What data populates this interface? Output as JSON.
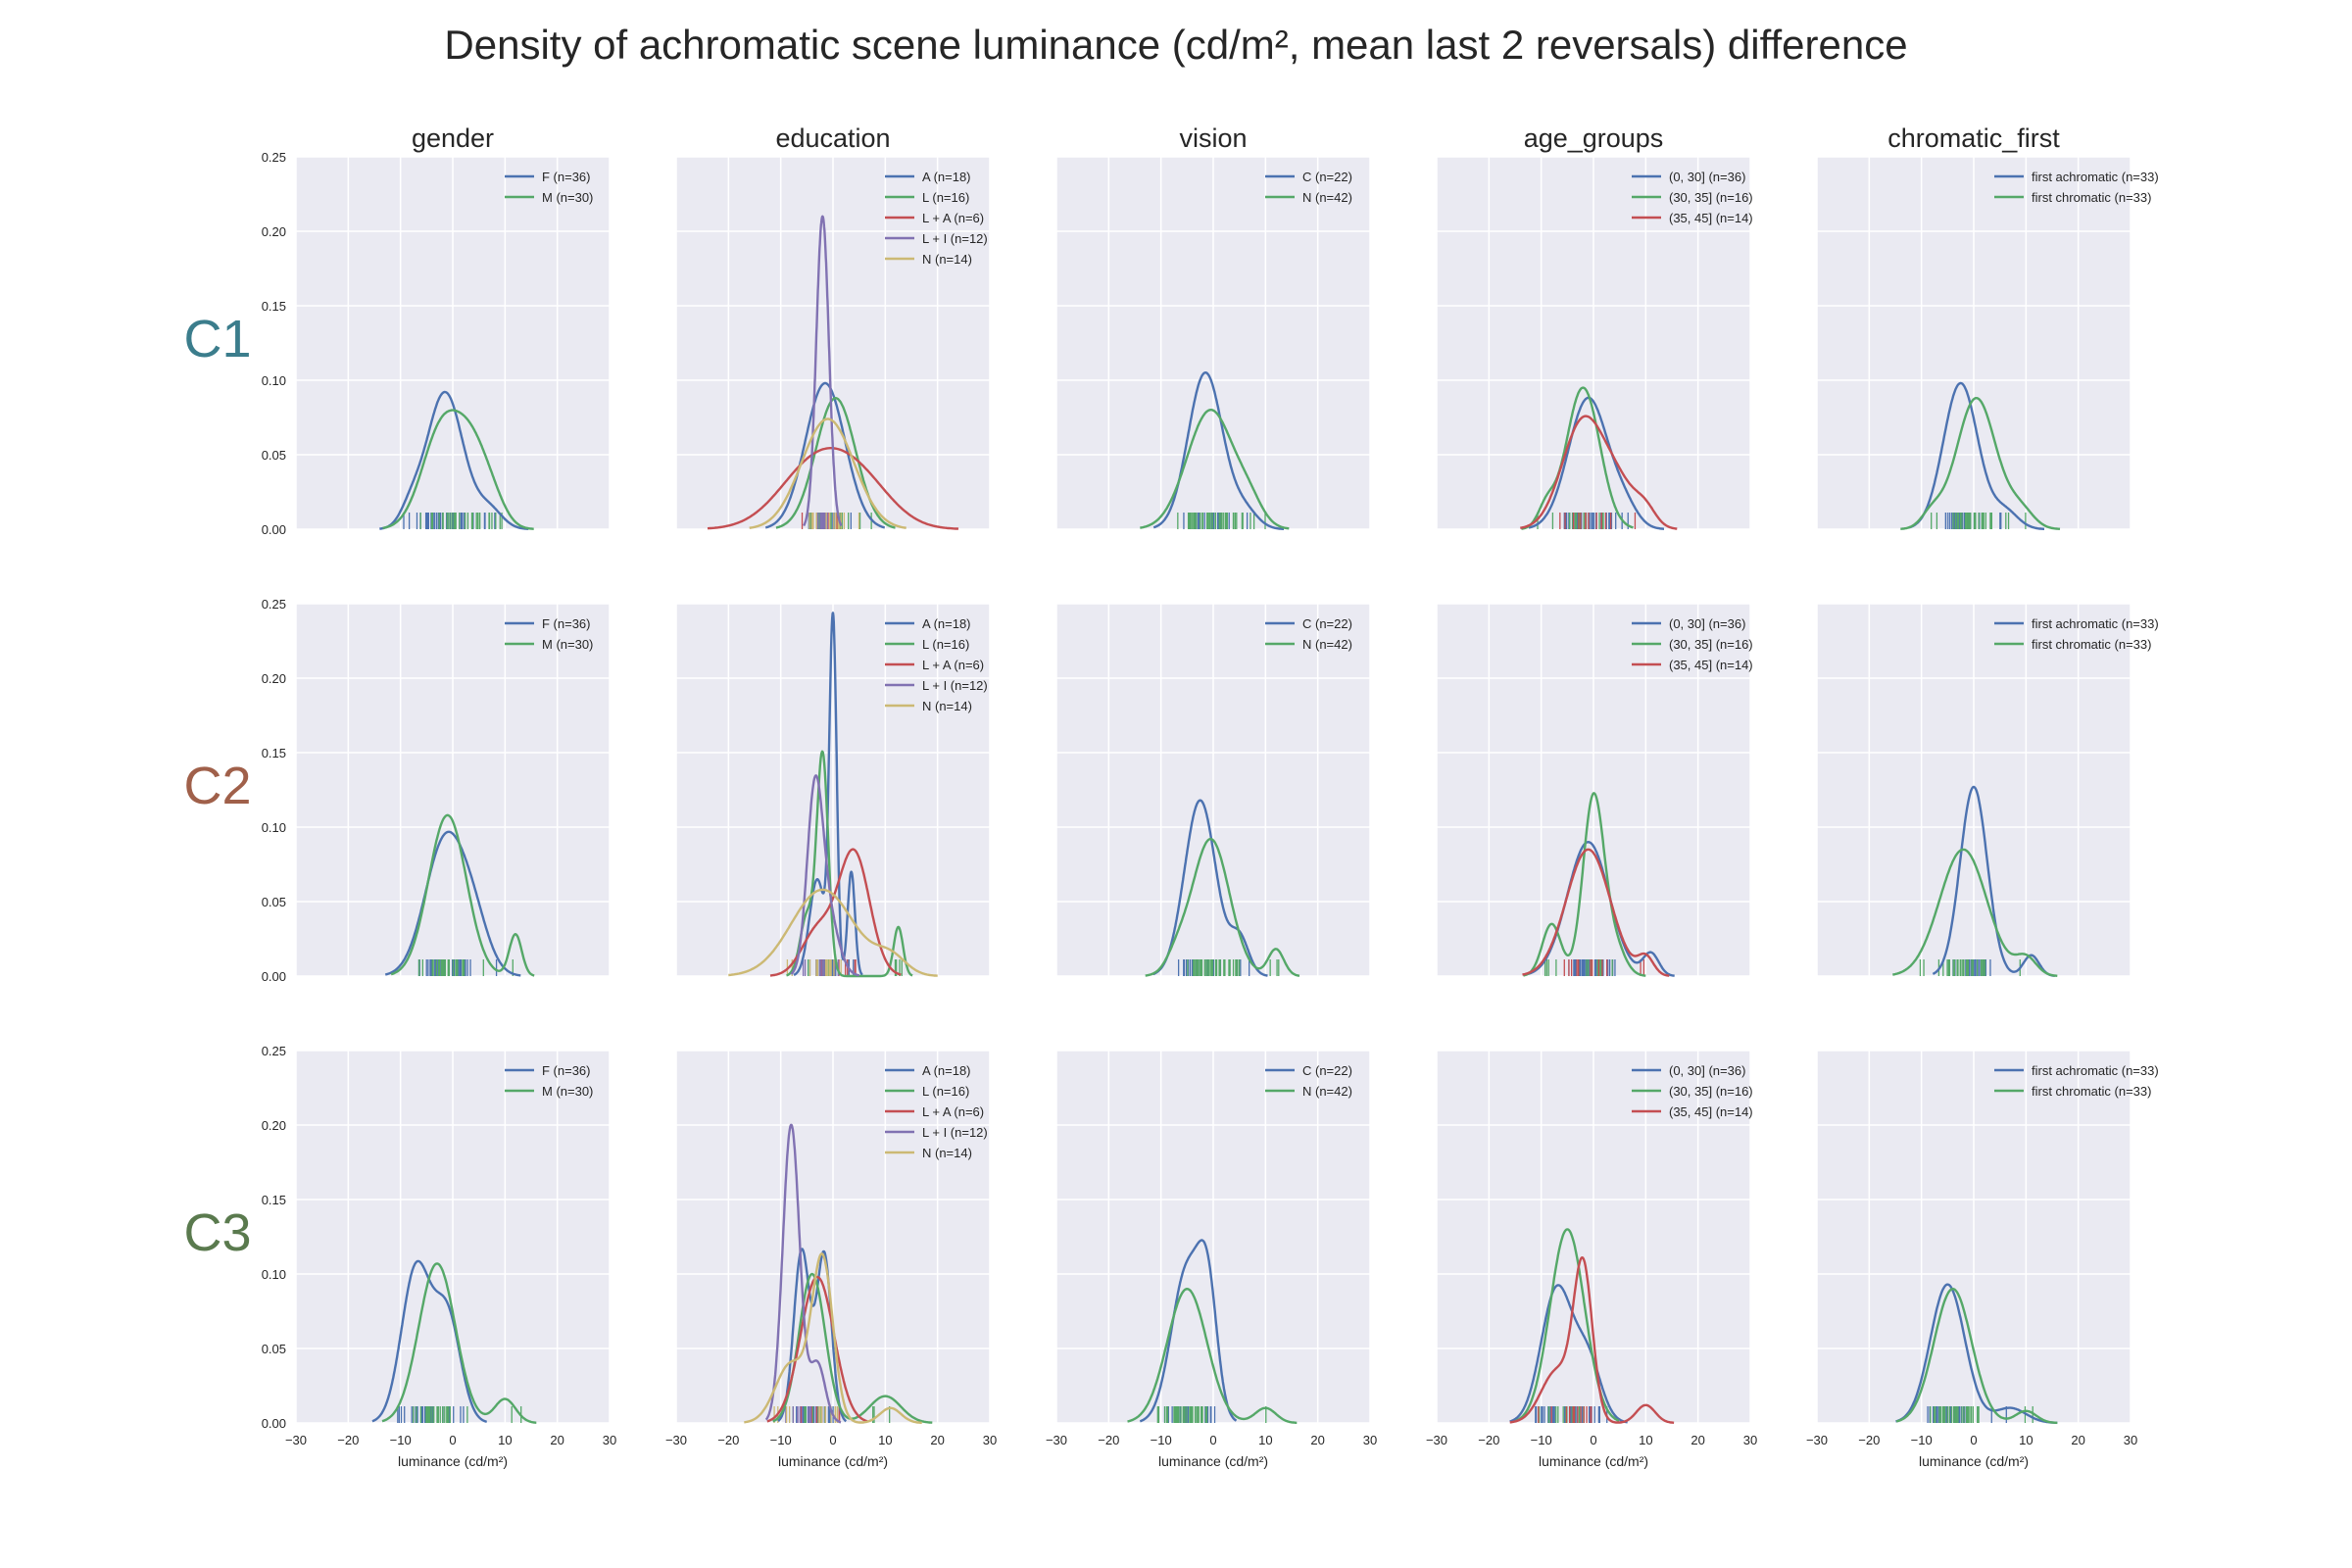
{
  "title": "Density of achromatic scene luminance (cd/m², mean last 2 reversals) difference",
  "colors": {
    "panel_bg": "#EAEAF2",
    "grid": "#FFFFFF",
    "text": "#262626",
    "series": [
      "#4C72B0",
      "#55A868",
      "#C44E52",
      "#8172B2",
      "#CCB974"
    ],
    "row_labels": [
      "#3B7D8C",
      "#A0604A",
      "#5A7A4E"
    ]
  },
  "chart_data": {
    "type": "line",
    "xlabel": "luminance (cd/m²)",
    "xlim": [
      -30,
      30
    ],
    "ylim": [
      0,
      0.25
    ],
    "x_ticks": [
      "−30",
      "−20",
      "−10",
      "0",
      "10",
      "20",
      "30"
    ],
    "y_ticks": [
      "0.00",
      "0.05",
      "0.10",
      "0.15",
      "0.20",
      "0.25"
    ],
    "grid": true,
    "legend_position": "upper right",
    "columns": [
      "gender",
      "education",
      "vision",
      "age_groups",
      "chromatic_first"
    ],
    "rows": [
      "C1",
      "C2",
      "C3"
    ],
    "legends": {
      "gender": [
        "F (n=36)",
        "M (n=30)"
      ],
      "education": [
        "A (n=18)",
        "L (n=16)",
        "L + A (n=6)",
        "L + I (n=12)",
        "N (n=14)"
      ],
      "vision": [
        "C (n=22)",
        "N (n=42)"
      ],
      "age_groups": [
        "(0, 30] (n=36)",
        "(30, 35] (n=16)",
        "(35, 45] (n=14)"
      ],
      "chromatic_first": [
        "first achromatic (n=33)",
        "first chromatic (n=33)"
      ]
    },
    "panels": [
      [
        [
          {
            "peaks": [
              [
                -1.5,
                0.092,
                3.5
              ],
              [
                -8,
                0.012,
                2
              ],
              [
                7,
                0.013,
                2.5
              ]
            ]
          },
          {
            "peaks": [
              [
                -2,
                0.068,
                3.8
              ],
              [
                4,
                0.045,
                3.2
              ],
              [
                8,
                0.01,
                2.5
              ]
            ]
          }
        ],
        [
          {
            "peaks": [
              [
                -1.5,
                0.098,
                3.8
              ]
            ]
          },
          {
            "peaks": [
              [
                0.5,
                0.088,
                3.8
              ]
            ]
          },
          {
            "peaks": [
              [
                -3,
                0.045,
                7
              ],
              [
                6,
                0.022,
                6
              ]
            ]
          },
          {
            "peaks": [
              [
                -2,
                0.21,
                1.2
              ]
            ]
          },
          {
            "peaks": [
              [
                -1,
                0.074,
                5
              ]
            ]
          }
        ],
        [
          {
            "peaks": [
              [
                -1.5,
                0.105,
                3.3
              ],
              [
                6,
                0.012,
                2.5
              ]
            ]
          },
          {
            "peaks": [
              [
                -0.5,
                0.08,
                4.5
              ],
              [
                7,
                0.012,
                2.5
              ]
            ]
          }
        ],
        [
          {
            "peaks": [
              [
                -1,
                0.088,
                3.8
              ],
              [
                6,
                0.012,
                2.5
              ]
            ]
          },
          {
            "peaks": [
              [
                -2,
                0.095,
                3.2
              ],
              [
                -9,
                0.014,
                1.6
              ]
            ]
          },
          {
            "peaks": [
              [
                -2,
                0.072,
                4
              ],
              [
                5,
                0.025,
                3.5
              ],
              [
                10,
                0.01,
                2
              ]
            ]
          }
        ],
        [
          {
            "peaks": [
              [
                -2.5,
                0.098,
                3.3
              ],
              [
                6,
                0.012,
                2.5
              ]
            ]
          },
          {
            "peaks": [
              [
                0.5,
                0.088,
                3.8
              ],
              [
                -8,
                0.01,
                2
              ],
              [
                9,
                0.012,
                2.5
              ]
            ]
          }
        ]
      ],
      [
        [
          {
            "peaks": [
              [
                -1.5,
                0.09,
                3.8
              ],
              [
                4,
                0.03,
                3
              ]
            ]
          },
          {
            "peaks": [
              [
                -1,
                0.108,
                3.6
              ],
              [
                12,
                0.028,
                1.2
              ]
            ]
          }
        ],
        [
          {
            "peaks": [
              [
                0,
                0.235,
                0.7
              ],
              [
                -3,
                0.065,
                1.5
              ],
              [
                3.5,
                0.07,
                0.7
              ]
            ]
          },
          {
            "peaks": [
              [
                -2,
                0.148,
                1.1
              ],
              [
                -5,
                0.04,
                1.3
              ],
              [
                12.5,
                0.033,
                0.9
              ]
            ]
          },
          {
            "peaks": [
              [
                4,
                0.083,
                3
              ],
              [
                -3,
                0.03,
                3
              ]
            ]
          },
          {
            "peaks": [
              [
                -3.5,
                0.115,
                1.5
              ],
              [
                -1,
                0.04,
                2
              ]
            ]
          },
          {
            "peaks": [
              [
                -2,
                0.058,
                6
              ],
              [
                11,
                0.012,
                3
              ]
            ]
          }
        ],
        [
          {
            "peaks": [
              [
                -2.5,
                0.118,
                3
              ],
              [
                5,
                0.025,
                1.8
              ]
            ]
          },
          {
            "peaks": [
              [
                -0.5,
                0.092,
                3.6
              ],
              [
                12,
                0.018,
                1.5
              ],
              [
                -7,
                0.01,
                2
              ]
            ]
          }
        ],
        [
          {
            "peaks": [
              [
                -1,
                0.09,
                4
              ],
              [
                11,
                0.015,
                1.5
              ]
            ]
          },
          {
            "peaks": [
              [
                0,
                0.12,
                2
              ],
              [
                -8,
                0.035,
                1.8
              ],
              [
                4,
                0.02,
                2
              ]
            ]
          },
          {
            "peaks": [
              [
                -1,
                0.085,
                4.2
              ],
              [
                10,
                0.012,
                1.5
              ]
            ]
          }
        ],
        [
          {
            "peaks": [
              [
                0,
                0.127,
                2.6
              ],
              [
                11,
                0.014,
                1.5
              ]
            ]
          },
          {
            "peaks": [
              [
                -2,
                0.085,
                4.5
              ],
              [
                10,
                0.012,
                2
              ]
            ]
          }
        ]
      ],
      [
        [
          {
            "peaks": [
              [
                -7,
                0.104,
                2.8
              ],
              [
                -1,
                0.07,
                2.5
              ]
            ]
          },
          {
            "peaks": [
              [
                -3,
                0.107,
                3.5
              ],
              [
                10,
                0.016,
                2
              ]
            ]
          }
        ],
        [
          {
            "peaks": [
              [
                -6,
                0.115,
                1.5
              ],
              [
                -2,
                0.055,
                1.5
              ],
              [
                -1.5,
                0.06,
                1.3
              ]
            ]
          },
          {
            "peaks": [
              [
                -4,
                0.1,
                2.5
              ],
              [
                10,
                0.018,
                3
              ]
            ]
          },
          {
            "peaks": [
              [
                -3,
                0.098,
                3.2
              ]
            ]
          },
          {
            "peaks": [
              [
                -8,
                0.2,
                1.6
              ],
              [
                -3,
                0.04,
                1.5
              ]
            ]
          },
          {
            "peaks": [
              [
                -2,
                0.108,
                2
              ],
              [
                -8,
                0.04,
                3
              ],
              [
                11,
                0.01,
                2
              ]
            ]
          }
        ],
        [
          {
            "peaks": [
              [
                -5,
                0.103,
                3
              ],
              [
                -1,
                0.07,
                1.8
              ]
            ]
          },
          {
            "peaks": [
              [
                -5,
                0.09,
                3.8
              ],
              [
                10,
                0.01,
                2
              ]
            ]
          }
        ],
        [
          {
            "peaks": [
              [
                -7,
                0.09,
                3
              ],
              [
                -1,
                0.04,
                2.5
              ]
            ]
          },
          {
            "peaks": [
              [
                -5,
                0.13,
                3.3
              ]
            ]
          },
          {
            "peaks": [
              [
                -2,
                0.102,
                1.8
              ],
              [
                -7,
                0.035,
                3
              ],
              [
                10,
                0.012,
                1.8
              ]
            ]
          }
        ],
        [
          {
            "peaks": [
              [
                -5,
                0.093,
                3.3
              ],
              [
                7,
                0.01,
                3
              ]
            ]
          },
          {
            "peaks": [
              [
                -4,
                0.09,
                3.6
              ],
              [
                10,
                0.008,
                2
              ]
            ]
          }
        ]
      ]
    ]
  }
}
